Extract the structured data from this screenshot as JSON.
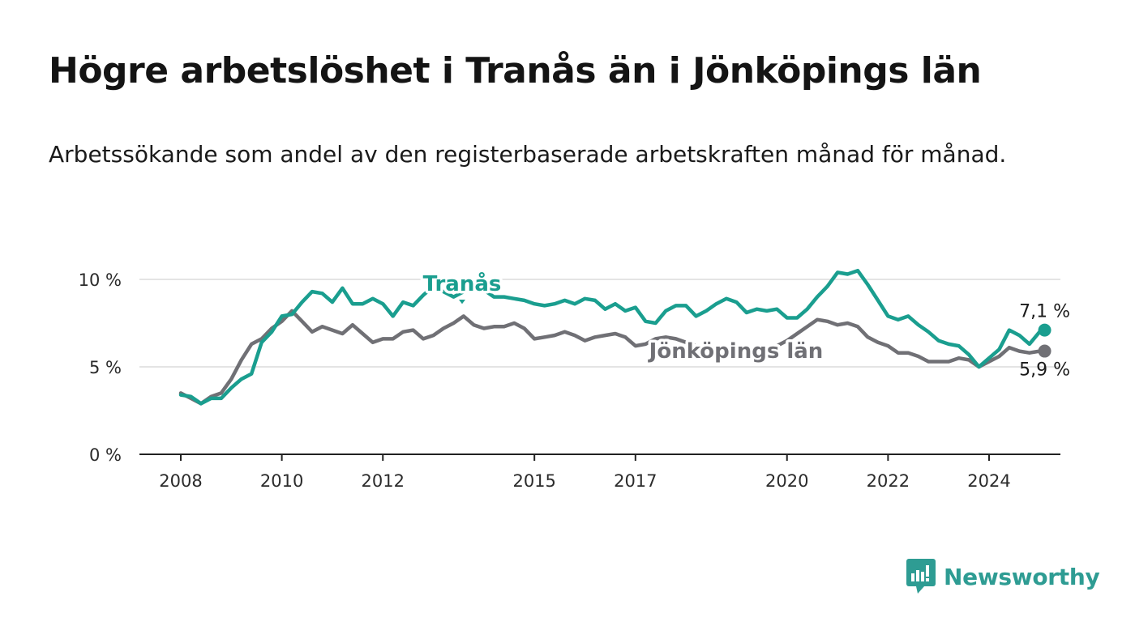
{
  "title": "Högre arbetslöshet i Tranås än i Jönköpings län",
  "subtitle": "Arbetssökande som andel av den registerbaserade arbetskraften månad för månad.",
  "brand": {
    "name": "Newsworthy",
    "color": "#2e9c93",
    "icon": "newsworthy-logo-icon"
  },
  "chart_data": {
    "type": "line",
    "x_unit": "year",
    "xlim": [
      2007.2,
      2025.7
    ],
    "ylim": [
      0,
      10
    ],
    "grid": true,
    "x_ticks": [
      {
        "value": 2008,
        "label": "2008"
      },
      {
        "value": 2010,
        "label": "2010"
      },
      {
        "value": 2012,
        "label": "2012"
      },
      {
        "value": 2015,
        "label": "2015"
      },
      {
        "value": 2017,
        "label": "2017"
      },
      {
        "value": 2020,
        "label": "2020"
      },
      {
        "value": 2022,
        "label": "2022"
      },
      {
        "value": 2024,
        "label": "2024"
      }
    ],
    "y_ticks": [
      {
        "value": 0,
        "label": "0 %"
      },
      {
        "value": 5,
        "label": "5 %"
      },
      {
        "value": 10,
        "label": "10 %"
      }
    ],
    "series": [
      {
        "name": "Tranås",
        "color": "#1a9e8f",
        "end_label": "7,1 %",
        "points": [
          [
            2008.0,
            3.4
          ],
          [
            2008.2,
            3.3
          ],
          [
            2008.4,
            2.9
          ],
          [
            2008.6,
            3.2
          ],
          [
            2008.8,
            3.2
          ],
          [
            2009.0,
            3.8
          ],
          [
            2009.2,
            4.3
          ],
          [
            2009.4,
            4.6
          ],
          [
            2009.6,
            6.4
          ],
          [
            2009.8,
            7.0
          ],
          [
            2010.0,
            7.9
          ],
          [
            2010.2,
            8.0
          ],
          [
            2010.4,
            8.7
          ],
          [
            2010.6,
            9.3
          ],
          [
            2010.8,
            9.2
          ],
          [
            2011.0,
            8.7
          ],
          [
            2011.2,
            9.5
          ],
          [
            2011.4,
            8.6
          ],
          [
            2011.6,
            8.6
          ],
          [
            2011.8,
            8.9
          ],
          [
            2012.0,
            8.6
          ],
          [
            2012.2,
            7.9
          ],
          [
            2012.4,
            8.7
          ],
          [
            2012.6,
            8.5
          ],
          [
            2012.8,
            9.1
          ],
          [
            2013.0,
            9.6
          ],
          [
            2013.2,
            9.3
          ],
          [
            2013.4,
            9.0
          ],
          [
            2013.6,
            9.3
          ],
          [
            2013.8,
            9.6
          ],
          [
            2014.0,
            9.4
          ],
          [
            2014.2,
            9.0
          ],
          [
            2014.4,
            9.0
          ],
          [
            2014.6,
            8.9
          ],
          [
            2014.8,
            8.8
          ],
          [
            2015.0,
            8.6
          ],
          [
            2015.2,
            8.5
          ],
          [
            2015.4,
            8.6
          ],
          [
            2015.6,
            8.8
          ],
          [
            2015.8,
            8.6
          ],
          [
            2016.0,
            8.9
          ],
          [
            2016.2,
            8.8
          ],
          [
            2016.4,
            8.3
          ],
          [
            2016.6,
            8.6
          ],
          [
            2016.8,
            8.2
          ],
          [
            2017.0,
            8.4
          ],
          [
            2017.2,
            7.6
          ],
          [
            2017.4,
            7.5
          ],
          [
            2017.6,
            8.2
          ],
          [
            2017.8,
            8.5
          ],
          [
            2018.0,
            8.5
          ],
          [
            2018.2,
            7.9
          ],
          [
            2018.4,
            8.2
          ],
          [
            2018.6,
            8.6
          ],
          [
            2018.8,
            8.9
          ],
          [
            2019.0,
            8.7
          ],
          [
            2019.2,
            8.1
          ],
          [
            2019.4,
            8.3
          ],
          [
            2019.6,
            8.2
          ],
          [
            2019.8,
            8.3
          ],
          [
            2020.0,
            7.8
          ],
          [
            2020.2,
            7.8
          ],
          [
            2020.4,
            8.3
          ],
          [
            2020.6,
            9.0
          ],
          [
            2020.8,
            9.6
          ],
          [
            2021.0,
            10.4
          ],
          [
            2021.2,
            10.3
          ],
          [
            2021.4,
            10.5
          ],
          [
            2021.6,
            9.7
          ],
          [
            2021.8,
            8.8
          ],
          [
            2022.0,
            7.9
          ],
          [
            2022.2,
            7.7
          ],
          [
            2022.4,
            7.9
          ],
          [
            2022.6,
            7.4
          ],
          [
            2022.8,
            7.0
          ],
          [
            2023.0,
            6.5
          ],
          [
            2023.2,
            6.3
          ],
          [
            2023.4,
            6.2
          ],
          [
            2023.6,
            5.7
          ],
          [
            2023.8,
            5.0
          ],
          [
            2024.0,
            5.5
          ],
          [
            2024.2,
            6.0
          ],
          [
            2024.4,
            7.1
          ],
          [
            2024.6,
            6.8
          ],
          [
            2024.8,
            6.3
          ],
          [
            2025.0,
            7.0
          ],
          [
            2025.1,
            7.1
          ]
        ]
      },
      {
        "name": "Jönköpings län",
        "color": "#707075",
        "end_label": "5,9 %",
        "points": [
          [
            2008.0,
            3.5
          ],
          [
            2008.2,
            3.2
          ],
          [
            2008.4,
            2.9
          ],
          [
            2008.6,
            3.3
          ],
          [
            2008.8,
            3.5
          ],
          [
            2009.0,
            4.3
          ],
          [
            2009.2,
            5.4
          ],
          [
            2009.4,
            6.3
          ],
          [
            2009.6,
            6.6
          ],
          [
            2009.8,
            7.2
          ],
          [
            2010.0,
            7.6
          ],
          [
            2010.2,
            8.2
          ],
          [
            2010.4,
            7.6
          ],
          [
            2010.6,
            7.0
          ],
          [
            2010.8,
            7.3
          ],
          [
            2011.0,
            7.1
          ],
          [
            2011.2,
            6.9
          ],
          [
            2011.4,
            7.4
          ],
          [
            2011.6,
            6.9
          ],
          [
            2011.8,
            6.4
          ],
          [
            2012.0,
            6.6
          ],
          [
            2012.2,
            6.6
          ],
          [
            2012.4,
            7.0
          ],
          [
            2012.6,
            7.1
          ],
          [
            2012.8,
            6.6
          ],
          [
            2013.0,
            6.8
          ],
          [
            2013.2,
            7.2
          ],
          [
            2013.4,
            7.5
          ],
          [
            2013.6,
            7.9
          ],
          [
            2013.8,
            7.4
          ],
          [
            2014.0,
            7.2
          ],
          [
            2014.2,
            7.3
          ],
          [
            2014.4,
            7.3
          ],
          [
            2014.6,
            7.5
          ],
          [
            2014.8,
            7.2
          ],
          [
            2015.0,
            6.6
          ],
          [
            2015.2,
            6.7
          ],
          [
            2015.4,
            6.8
          ],
          [
            2015.6,
            7.0
          ],
          [
            2015.8,
            6.8
          ],
          [
            2016.0,
            6.5
          ],
          [
            2016.2,
            6.7
          ],
          [
            2016.4,
            6.8
          ],
          [
            2016.6,
            6.9
          ],
          [
            2016.8,
            6.7
          ],
          [
            2017.0,
            6.2
          ],
          [
            2017.2,
            6.3
          ],
          [
            2017.4,
            6.6
          ],
          [
            2017.6,
            6.7
          ],
          [
            2017.8,
            6.6
          ],
          [
            2018.0,
            6.4
          ],
          [
            2018.2,
            6.2
          ],
          [
            2018.4,
            6.1
          ],
          [
            2018.6,
            5.8
          ],
          [
            2018.8,
            5.6
          ],
          [
            2019.0,
            5.6
          ],
          [
            2019.2,
            5.6
          ],
          [
            2019.4,
            5.6
          ],
          [
            2019.6,
            5.8
          ],
          [
            2019.8,
            6.2
          ],
          [
            2020.0,
            6.5
          ],
          [
            2020.2,
            6.9
          ],
          [
            2020.4,
            7.3
          ],
          [
            2020.6,
            7.7
          ],
          [
            2020.8,
            7.6
          ],
          [
            2021.0,
            7.4
          ],
          [
            2021.2,
            7.5
          ],
          [
            2021.4,
            7.3
          ],
          [
            2021.6,
            6.7
          ],
          [
            2021.8,
            6.4
          ],
          [
            2022.0,
            6.2
          ],
          [
            2022.2,
            5.8
          ],
          [
            2022.4,
            5.8
          ],
          [
            2022.6,
            5.6
          ],
          [
            2022.8,
            5.3
          ],
          [
            2023.0,
            5.3
          ],
          [
            2023.2,
            5.3
          ],
          [
            2023.4,
            5.5
          ],
          [
            2023.6,
            5.4
          ],
          [
            2023.8,
            5.0
          ],
          [
            2024.0,
            5.3
          ],
          [
            2024.2,
            5.6
          ],
          [
            2024.4,
            6.1
          ],
          [
            2024.6,
            5.9
          ],
          [
            2024.8,
            5.8
          ],
          [
            2025.0,
            5.9
          ],
          [
            2025.1,
            5.9
          ]
        ]
      }
    ]
  }
}
